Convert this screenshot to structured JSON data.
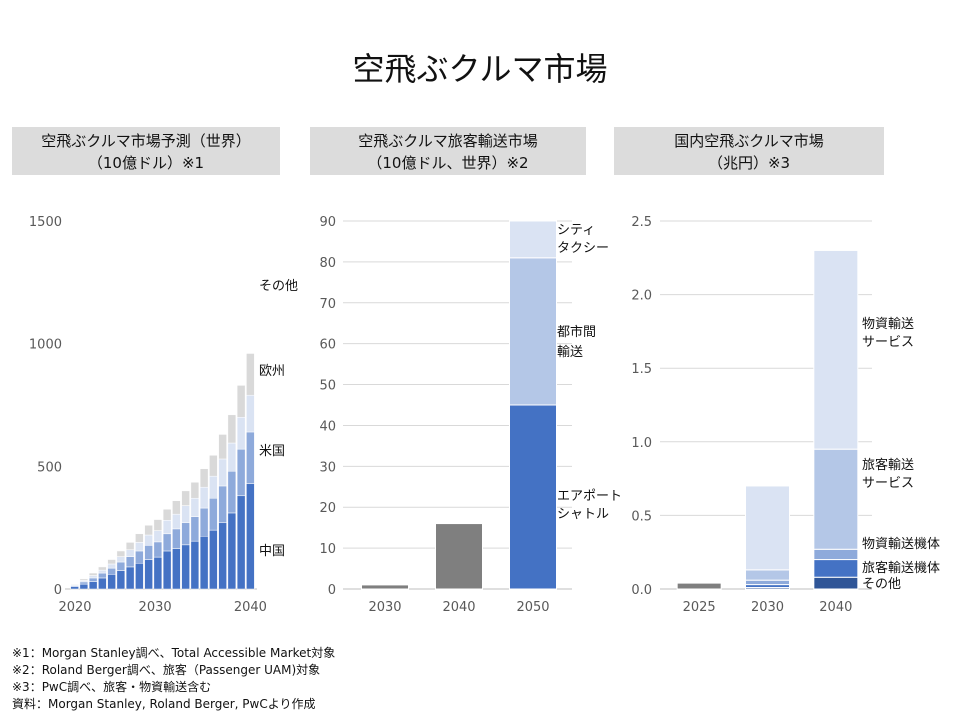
{
  "title": "空飛ぶクルマ市場",
  "colors": {
    "china": "#4472c4",
    "us": "#8eaadb",
    "europe": "#dae3f3",
    "other": "#d9d9d9",
    "gray_bar": "#7f7f7f",
    "airport_shuttle": "#4472c4",
    "intercity": "#b4c7e7",
    "city_taxi": "#dae3f3",
    "cargo_service": "#dae3f3",
    "passenger_service": "#b4c7e7",
    "cargo_aircraft": "#8eaadb",
    "passenger_aircraft": "#4472c4",
    "others_jp": "#2f5597",
    "grid": "#d9d9d9"
  },
  "chart_data": [
    {
      "id": "global_forecast",
      "type": "bar",
      "stacked": true,
      "title_lines": [
        "空飛ぶクルマ市場予測（世界）",
        "（10億ドル）※1"
      ],
      "categories": [
        "2021",
        "2022",
        "2023",
        "2024",
        "2025",
        "2026",
        "2027",
        "2028",
        "2029",
        "2030",
        "2031",
        "2032",
        "2033",
        "2034",
        "2035",
        "2036",
        "2037",
        "2038",
        "2039",
        "2040"
      ],
      "x_tick_labels": [
        "2020",
        "2030",
        "2040"
      ],
      "ylim": [
        0,
        1500
      ],
      "y_ticks": [
        0,
        500,
        1000,
        1500
      ],
      "y_tick_labels": [
        "0",
        "500",
        "1000",
        "1500"
      ],
      "grid": false,
      "series": [
        {
          "name": "中国",
          "color_key": "china",
          "values": [
            10,
            20,
            30,
            45,
            60,
            75,
            90,
            105,
            120,
            130,
            155,
            165,
            180,
            195,
            215,
            240,
            270,
            310,
            380,
            430
          ]
        },
        {
          "name": "米国",
          "color_key": "us",
          "values": [
            4,
            9,
            15,
            20,
            25,
            35,
            42,
            50,
            58,
            62,
            70,
            80,
            90,
            100,
            115,
            130,
            150,
            170,
            190,
            210
          ]
        },
        {
          "name": "欧州",
          "color_key": "europe",
          "values": [
            3,
            6,
            10,
            12,
            17,
            22,
            28,
            35,
            42,
            46,
            55,
            60,
            70,
            75,
            85,
            90,
            110,
            115,
            130,
            150
          ]
        },
        {
          "name": "その他",
          "color_key": "other",
          "values": [
            3,
            6,
            10,
            13,
            18,
            23,
            30,
            35,
            40,
            45,
            45,
            55,
            60,
            65,
            75,
            85,
            100,
            115,
            130,
            170
          ]
        }
      ]
    },
    {
      "id": "global_passenger",
      "type": "bar",
      "stacked": true,
      "title_lines": [
        "空飛ぶクルマ旅客輸送市場",
        "（10億ドル、世界）※2"
      ],
      "categories": [
        "2030",
        "2040",
        "2050"
      ],
      "ylim": [
        0,
        90
      ],
      "y_ticks": [
        0,
        10,
        20,
        30,
        40,
        50,
        60,
        70,
        80,
        90
      ],
      "y_tick_labels": [
        "0",
        "10",
        "20",
        "30",
        "40",
        "50",
        "60",
        "70",
        "80",
        "90"
      ],
      "grid": true,
      "series": [
        {
          "name": "total",
          "color_key": "gray_bar",
          "values": [
            1,
            16,
            0
          ]
        },
        {
          "name": "エアポートシャトル",
          "label_lines": [
            "エアポート",
            "シャトル"
          ],
          "color_key": "airport_shuttle",
          "values": [
            0,
            0,
            45
          ]
        },
        {
          "name": "都市間輸送",
          "label_lines": [
            "都市間",
            "輸送"
          ],
          "color_key": "intercity",
          "values": [
            0,
            0,
            36
          ]
        },
        {
          "name": "シティタクシー",
          "label_lines": [
            "シティ",
            "タクシー"
          ],
          "color_key": "city_taxi",
          "values": [
            0,
            0,
            9
          ]
        }
      ]
    },
    {
      "id": "japan_market",
      "type": "bar",
      "stacked": true,
      "title_lines": [
        "国内空飛ぶクルマ市場",
        "（兆円）※3"
      ],
      "categories": [
        "2025",
        "2030",
        "2040"
      ],
      "ylim": [
        0,
        2.5
      ],
      "y_ticks": [
        0,
        0.5,
        1.0,
        1.5,
        2.0,
        2.5
      ],
      "y_tick_labels": [
        "0.0",
        "0.5",
        "1.0",
        "1.5",
        "2.0",
        "2.5"
      ],
      "grid": true,
      "series": [
        {
          "name": "total",
          "color_key": "gray_bar",
          "values": [
            0.04,
            0,
            0
          ]
        },
        {
          "name": "その他",
          "label_lines": [
            "その他"
          ],
          "color_key": "others_jp",
          "values": [
            0,
            0.01,
            0.08
          ]
        },
        {
          "name": "旅客輸送機体",
          "label_lines": [
            "旅客輸送機体"
          ],
          "color_key": "passenger_aircraft",
          "values": [
            0,
            0.02,
            0.12
          ]
        },
        {
          "name": "物資輸送機体",
          "label_lines": [
            "物資輸送機体"
          ],
          "color_key": "cargo_aircraft",
          "values": [
            0,
            0.03,
            0.07
          ]
        },
        {
          "name": "旅客輸送サービス",
          "label_lines": [
            "旅客輸送",
            "サービス"
          ],
          "color_key": "passenger_service",
          "values": [
            0,
            0.07,
            0.68
          ]
        },
        {
          "name": "物資輸送サービス",
          "label_lines": [
            "物資輸送",
            "サービス"
          ],
          "color_key": "cargo_service",
          "values": [
            0,
            0.57,
            1.35
          ]
        }
      ]
    }
  ],
  "notes": [
    "※1：Morgan Stanley調べ、Total Accessible Market対象",
    "※2：Roland Berger調べ、旅客（Passenger UAM)対象",
    "※3：PwC調べ、旅客・物資輸送含む",
    "資料：Morgan Stanley, Roland Berger, PwCより作成"
  ]
}
